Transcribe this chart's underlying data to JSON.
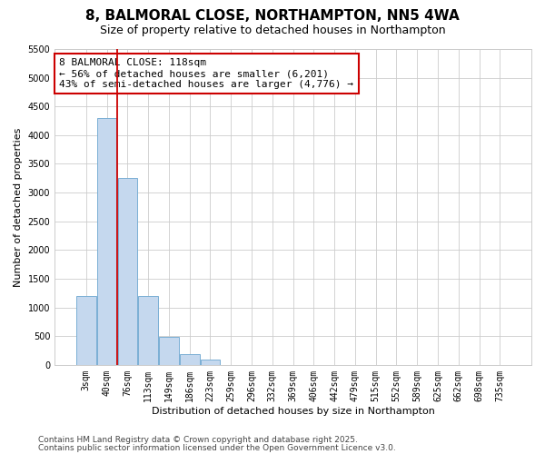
{
  "title": "8, BALMORAL CLOSE, NORTHAMPTON, NN5 4WA",
  "subtitle": "Size of property relative to detached houses in Northampton",
  "xlabel": "Distribution of detached houses by size in Northampton",
  "ylabel": "Number of detached properties",
  "categories": [
    "3sqm",
    "40sqm",
    "76sqm",
    "113sqm",
    "149sqm",
    "186sqm",
    "223sqm",
    "259sqm",
    "296sqm",
    "332sqm",
    "369sqm",
    "406sqm",
    "442sqm",
    "479sqm",
    "515sqm",
    "552sqm",
    "589sqm",
    "625sqm",
    "662sqm",
    "698sqm",
    "735sqm"
  ],
  "values": [
    1200,
    4300,
    3250,
    1200,
    480,
    180,
    90,
    0,
    0,
    0,
    0,
    0,
    0,
    0,
    0,
    0,
    0,
    0,
    0,
    0,
    0
  ],
  "bar_color": "#c5d8ee",
  "bar_edge_color": "#7aafd4",
  "vline_x_idx": 2,
  "vline_color": "#cc0000",
  "annotation_text": "8 BALMORAL CLOSE: 118sqm\n← 56% of detached houses are smaller (6,201)\n43% of semi-detached houses are larger (4,776) →",
  "annotation_box_color": "#ffffff",
  "annotation_box_edge_color": "#cc0000",
  "ylim": [
    0,
    5500
  ],
  "yticks": [
    0,
    500,
    1000,
    1500,
    2000,
    2500,
    3000,
    3500,
    4000,
    4500,
    5000,
    5500
  ],
  "footer_line1": "Contains HM Land Registry data © Crown copyright and database right 2025.",
  "footer_line2": "Contains public sector information licensed under the Open Government Licence v3.0.",
  "bg_color": "#ffffff",
  "grid_color": "#cccccc",
  "title_fontsize": 11,
  "subtitle_fontsize": 9,
  "axis_label_fontsize": 8,
  "tick_fontsize": 7,
  "annotation_fontsize": 8,
  "footer_fontsize": 6.5
}
